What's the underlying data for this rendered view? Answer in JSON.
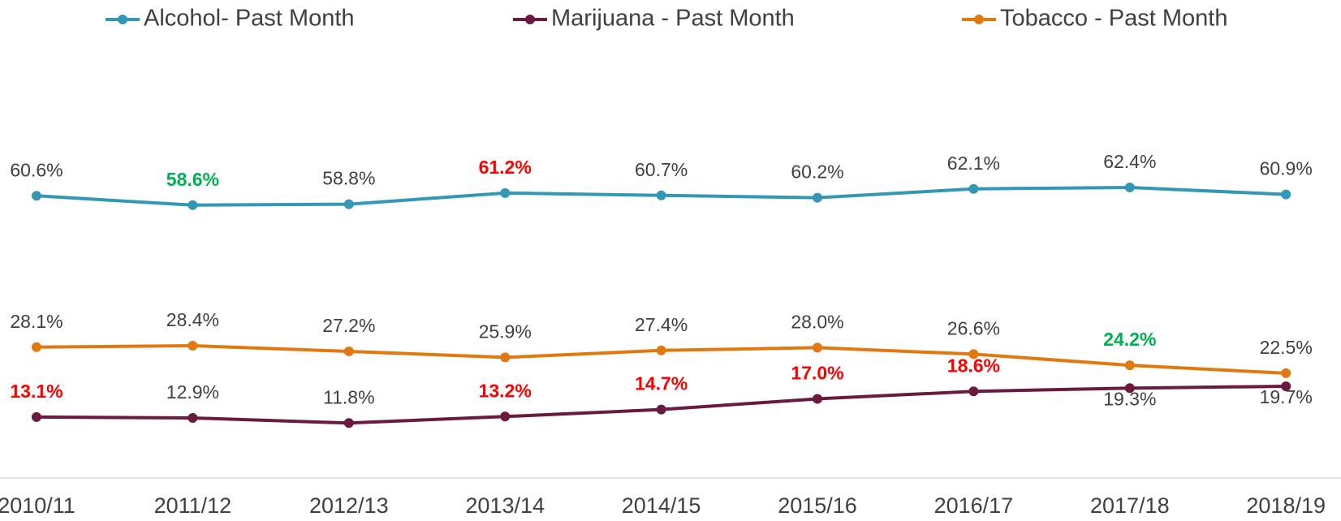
{
  "chart_data": {
    "type": "line",
    "categories": [
      "2010/11",
      "2011/12",
      "2012/13",
      "2013/14",
      "2014/15",
      "2015/16",
      "2016/17",
      "2017/18",
      "2018/19"
    ],
    "ylim": [
      0,
      80
    ],
    "legend": "top",
    "grid": false,
    "series": [
      {
        "name": "Alcohol- Past Month",
        "color": "#3497b6",
        "values": [
          60.6,
          58.6,
          58.8,
          61.2,
          60.7,
          60.2,
          62.1,
          62.4,
          60.9
        ],
        "value_labels": [
          "60.6%",
          "58.6%",
          "58.8%",
          "61.2%",
          "60.7%",
          "60.2%",
          "62.1%",
          "62.4%",
          "60.9%"
        ],
        "label_colors": [
          "#404040",
          "#00b050",
          "#404040",
          "#ff0000",
          "#404040",
          "#404040",
          "#404040",
          "#404040",
          "#404040"
        ]
      },
      {
        "name": "Marijuana - Past Month",
        "color": "#6b1a3f",
        "values": [
          13.1,
          12.9,
          11.8,
          13.2,
          14.7,
          17.0,
          18.6,
          19.3,
          19.7
        ],
        "value_labels": [
          "13.1%",
          "12.9%",
          "11.8%",
          "13.2%",
          "14.7%",
          "17.0%",
          "18.6%",
          "19.3%",
          "19.7%"
        ],
        "label_colors": [
          "#ff0000",
          "#404040",
          "#404040",
          "#ff0000",
          "#ff0000",
          "#ff0000",
          "#ff0000",
          "#404040",
          "#404040"
        ]
      },
      {
        "name": "Tobacco - Past Month",
        "color": "#e07a10",
        "values": [
          28.1,
          28.4,
          27.2,
          25.9,
          27.4,
          28.0,
          26.6,
          24.2,
          22.5
        ],
        "value_labels": [
          "28.1%",
          "28.4%",
          "27.2%",
          "25.9%",
          "27.4%",
          "28.0%",
          "26.6%",
          "24.2%",
          "22.5%"
        ],
        "label_colors": [
          "#404040",
          "#404040",
          "#404040",
          "#404040",
          "#404040",
          "#404040",
          "#404040",
          "#00b050",
          "#404040"
        ]
      }
    ]
  }
}
